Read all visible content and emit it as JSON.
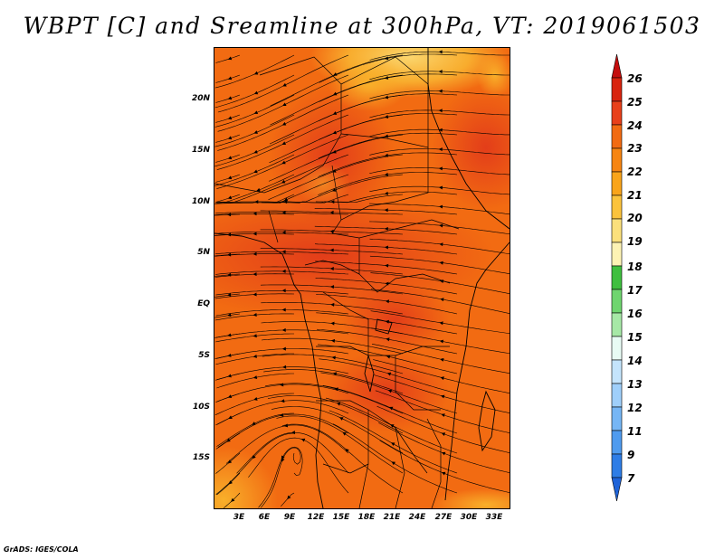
{
  "title": "WBPT [C] and Sreamline at 300hPa, VT: 2019061503",
  "credit": "GrADS: IGES/COLA",
  "map": {
    "lat_labels": [
      "20N",
      "15N",
      "10N",
      "5N",
      "EQ",
      "5S",
      "10S",
      "15S"
    ],
    "lon_labels": [
      "3E",
      "6E",
      "9E",
      "12E",
      "15E",
      "18E",
      "21E",
      "24E",
      "27E",
      "30E",
      "33E"
    ],
    "fill_colors": {
      "base": "#f26b12",
      "warm": "#e8461a",
      "cool": "#f7a21e",
      "light": "#fbd56a"
    }
  },
  "colorbar": {
    "labels": [
      "26",
      "25",
      "24",
      "23",
      "22",
      "21",
      "20",
      "19",
      "18",
      "17",
      "16",
      "15",
      "14",
      "13",
      "12",
      "11",
      "9",
      "7"
    ],
    "colors": [
      "#c40e0e",
      "#d8240f",
      "#e8401a",
      "#f26b12",
      "#f78512",
      "#f9a41a",
      "#fbc33c",
      "#fbe07c",
      "#fdf3b4",
      "#3fbf3f",
      "#6fd56f",
      "#a6e8a6",
      "#e8fbf4",
      "#c4e4fc",
      "#9fcffa",
      "#76b6f5",
      "#4f9bef",
      "#2e7de6",
      "#1e63d8"
    ]
  }
}
